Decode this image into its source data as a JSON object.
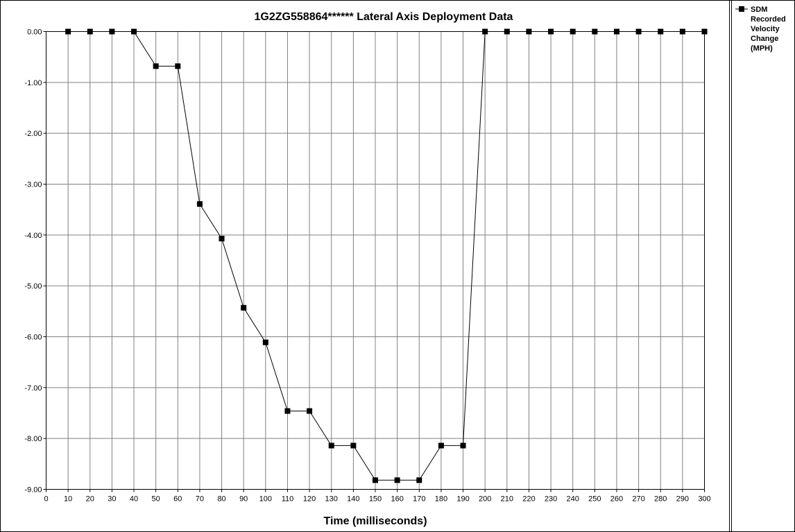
{
  "chart_data": {
    "type": "line",
    "title": "1G2ZG558864******  Lateral Axis Deployment Data",
    "xlabel": "Time (milliseconds)",
    "ylabel": "",
    "xlim": [
      0,
      300
    ],
    "ylim": [
      -9,
      0
    ],
    "x_ticks": [
      0,
      10,
      20,
      30,
      40,
      50,
      60,
      70,
      80,
      90,
      100,
      110,
      120,
      130,
      140,
      150,
      160,
      170,
      180,
      190,
      200,
      210,
      220,
      230,
      240,
      250,
      260,
      270,
      280,
      290,
      300
    ],
    "y_ticks": [
      0,
      -1,
      -2,
      -3,
      -4,
      -5,
      -6,
      -7,
      -8,
      -9
    ],
    "y_tick_labels": [
      "0.00",
      "-1.00",
      "-2.00",
      "-3.00",
      "-4.00",
      "-5.00",
      "-6.00",
      "-7.00",
      "-8.00",
      "-9.00"
    ],
    "grid": true,
    "legend_position": "right",
    "colors": {
      "line": "#000000",
      "grid": "#808080",
      "background": "#ffffff"
    },
    "series": [
      {
        "name": "SDM Recorded Velocity Change (MPH)",
        "legend_lines": [
          "SDM",
          "Recorded",
          "Velocity",
          "Change",
          "(MPH)"
        ],
        "marker": "square",
        "x": [
          10,
          20,
          30,
          40,
          50,
          60,
          70,
          80,
          90,
          100,
          110,
          120,
          130,
          140,
          150,
          160,
          170,
          180,
          190,
          200,
          210,
          220,
          230,
          240,
          250,
          260,
          270,
          280,
          290,
          300
        ],
        "values": [
          0,
          0,
          0,
          0,
          -0.68,
          -0.68,
          -3.39,
          -4.07,
          -5.43,
          -6.11,
          -7.46,
          -7.46,
          -8.14,
          -8.14,
          -8.82,
          -8.82,
          -8.82,
          -8.14,
          -8.14,
          0,
          0,
          0,
          0,
          0,
          0,
          0,
          0,
          0,
          0,
          0
        ]
      }
    ]
  }
}
